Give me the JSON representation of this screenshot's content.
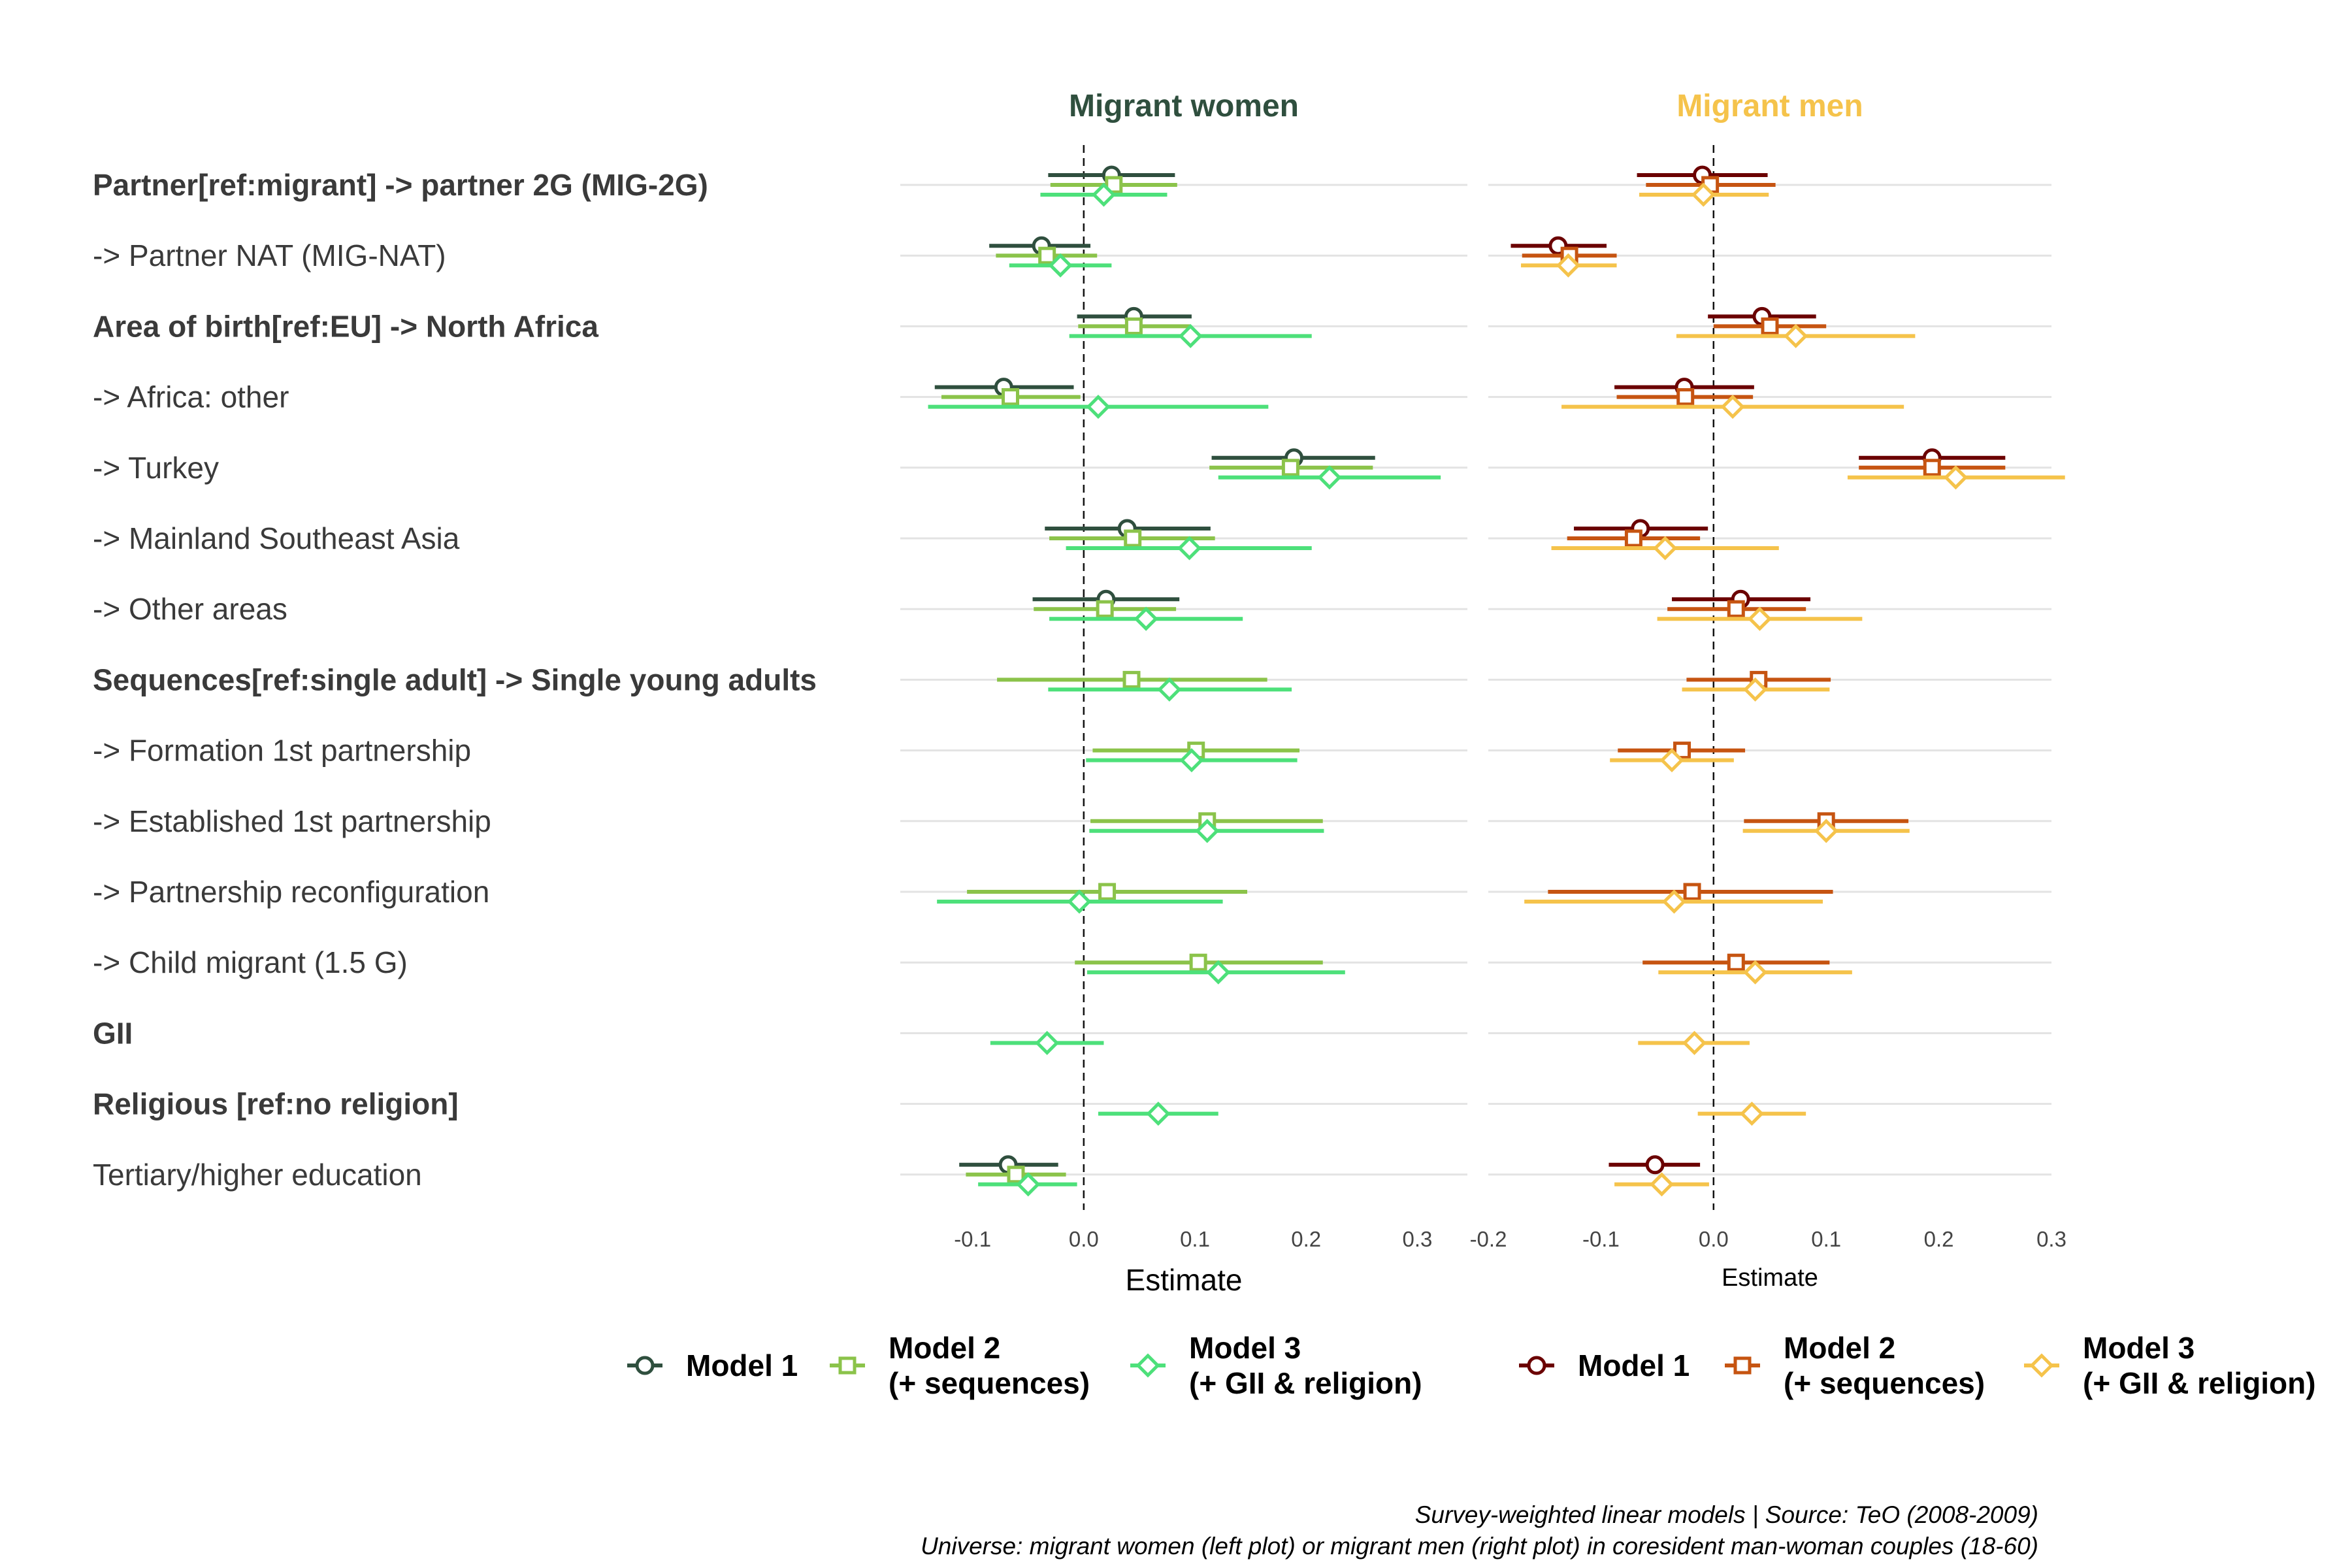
{
  "chart_data": {
    "type": "scatter",
    "subtype": "coefficient-plot",
    "terms": [
      {
        "label": "Partner[ref:migrant] -> partner 2G (MIG-2G)",
        "bold": true
      },
      {
        "label": "-> Partner NAT (MIG-NAT)",
        "bold": false
      },
      {
        "label": "Area of birth[ref:EU] -> North Africa",
        "bold": true
      },
      {
        "label": "-> Africa: other",
        "bold": false
      },
      {
        "label": "-> Turkey",
        "bold": false
      },
      {
        "label": "-> Mainland Southeast Asia",
        "bold": false
      },
      {
        "label": "-> Other areas",
        "bold": false
      },
      {
        "label": "Sequences[ref:single adult] -> Single young adults",
        "bold": true
      },
      {
        "label": "-> Formation 1st partnership",
        "bold": false
      },
      {
        "label": "-> Established 1st partnership",
        "bold": false
      },
      {
        "label": "-> Partnership reconfiguration",
        "bold": false
      },
      {
        "label": "-> Child migrant (1.5 G)",
        "bold": false
      },
      {
        "label": "GII",
        "bold": true
      },
      {
        "label": "Religious [ref:no religion]",
        "bold": true
      },
      {
        "label": "Tertiary/higher education",
        "bold": false
      }
    ],
    "panels": [
      {
        "title": "Migrant women",
        "title_color": "#2F4F3E",
        "xlabel": "Estimate",
        "xlim": [
          -0.165,
          0.345
        ],
        "ticks": [
          -0.1,
          0.0,
          0.1,
          0.2,
          0.3
        ],
        "tick_labels": [
          "-0.1",
          "0.0",
          "0.1",
          "0.2",
          "0.3"
        ],
        "reference_line": 0,
        "series": [
          {
            "name": "Model 1",
            "shape": "circle",
            "color": "#2F4F3E",
            "points": [
              {
                "term": 0,
                "est": 0.025,
                "lo": -0.032,
                "hi": 0.082
              },
              {
                "term": 1,
                "est": -0.038,
                "lo": -0.085,
                "hi": 0.006
              },
              {
                "term": 2,
                "est": 0.045,
                "lo": -0.006,
                "hi": 0.097
              },
              {
                "term": 3,
                "est": -0.072,
                "lo": -0.134,
                "hi": -0.009
              },
              {
                "term": 4,
                "est": 0.189,
                "lo": 0.115,
                "hi": 0.262
              },
              {
                "term": 5,
                "est": 0.039,
                "lo": -0.035,
                "hi": 0.114
              },
              {
                "term": 6,
                "est": 0.02,
                "lo": -0.046,
                "hi": 0.086
              },
              {
                "term": 14,
                "est": -0.068,
                "lo": -0.112,
                "hi": -0.023
              }
            ]
          },
          {
            "name": "Model 2\n(+ sequences)",
            "shape": "square",
            "color": "#8BC34A",
            "points": [
              {
                "term": 0,
                "est": 0.027,
                "lo": -0.03,
                "hi": 0.084
              },
              {
                "term": 1,
                "est": -0.033,
                "lo": -0.079,
                "hi": 0.012
              },
              {
                "term": 2,
                "est": 0.045,
                "lo": -0.005,
                "hi": 0.096
              },
              {
                "term": 3,
                "est": -0.066,
                "lo": -0.128,
                "hi": -0.003
              },
              {
                "term": 4,
                "est": 0.186,
                "lo": 0.113,
                "hi": 0.26
              },
              {
                "term": 5,
                "est": 0.044,
                "lo": -0.031,
                "hi": 0.118
              },
              {
                "term": 6,
                "est": 0.019,
                "lo": -0.045,
                "hi": 0.083
              },
              {
                "term": 7,
                "est": 0.043,
                "lo": -0.078,
                "hi": 0.165
              },
              {
                "term": 8,
                "est": 0.101,
                "lo": 0.008,
                "hi": 0.194
              },
              {
                "term": 9,
                "est": 0.111,
                "lo": 0.006,
                "hi": 0.215
              },
              {
                "term": 10,
                "est": 0.021,
                "lo": -0.105,
                "hi": 0.147
              },
              {
                "term": 11,
                "est": 0.103,
                "lo": -0.008,
                "hi": 0.215
              },
              {
                "term": 14,
                "est": -0.061,
                "lo": -0.106,
                "hi": -0.016
              }
            ]
          },
          {
            "name": "Model 3\n(+ GII & religion)",
            "shape": "diamond",
            "color": "#4DE07A",
            "points": [
              {
                "term": 0,
                "est": 0.018,
                "lo": -0.039,
                "hi": 0.075
              },
              {
                "term": 1,
                "est": -0.021,
                "lo": -0.067,
                "hi": 0.025
              },
              {
                "term": 2,
                "est": 0.096,
                "lo": -0.013,
                "hi": 0.205
              },
              {
                "term": 3,
                "est": 0.013,
                "lo": -0.14,
                "hi": 0.166
              },
              {
                "term": 4,
                "est": 0.221,
                "lo": 0.121,
                "hi": 0.321
              },
              {
                "term": 5,
                "est": 0.095,
                "lo": -0.016,
                "hi": 0.205
              },
              {
                "term": 6,
                "est": 0.056,
                "lo": -0.031,
                "hi": 0.143
              },
              {
                "term": 7,
                "est": 0.077,
                "lo": -0.032,
                "hi": 0.187
              },
              {
                "term": 8,
                "est": 0.097,
                "lo": 0.002,
                "hi": 0.192
              },
              {
                "term": 9,
                "est": 0.111,
                "lo": 0.005,
                "hi": 0.216
              },
              {
                "term": 10,
                "est": -0.004,
                "lo": -0.132,
                "hi": 0.125
              },
              {
                "term": 11,
                "est": 0.121,
                "lo": 0.003,
                "hi": 0.235
              },
              {
                "term": 12,
                "est": -0.033,
                "lo": -0.084,
                "hi": 0.018
              },
              {
                "term": 13,
                "est": 0.067,
                "lo": 0.013,
                "hi": 0.121
              },
              {
                "term": 14,
                "est": -0.05,
                "lo": -0.095,
                "hi": -0.006
              }
            ]
          }
        ]
      },
      {
        "title": "Migrant men",
        "title_color": "#F5C34B",
        "xlabel": "Estimate",
        "xlim": [
          -0.2,
          0.3
        ],
        "ticks": [
          -0.2,
          -0.1,
          0.0,
          0.1,
          0.2,
          0.3
        ],
        "tick_labels": [
          "-0.2",
          "-0.1",
          "0.0",
          "0.1",
          "0.2",
          "0.3"
        ],
        "reference_line": 0,
        "series": [
          {
            "name": "Model 1",
            "shape": "circle",
            "color": "#6B0000",
            "points": [
              {
                "term": 0,
                "est": -0.01,
                "lo": -0.068,
                "hi": 0.048
              },
              {
                "term": 1,
                "est": -0.138,
                "lo": -0.18,
                "hi": -0.095
              },
              {
                "term": 2,
                "est": 0.043,
                "lo": -0.005,
                "hi": 0.091
              },
              {
                "term": 3,
                "est": -0.026,
                "lo": -0.088,
                "hi": 0.036
              },
              {
                "term": 4,
                "est": 0.194,
                "lo": 0.129,
                "hi": 0.259
              },
              {
                "term": 5,
                "est": -0.065,
                "lo": -0.124,
                "hi": -0.005
              },
              {
                "term": 6,
                "est": 0.024,
                "lo": -0.037,
                "hi": 0.086
              },
              {
                "term": 14,
                "est": -0.052,
                "lo": -0.093,
                "hi": -0.012
              }
            ]
          },
          {
            "name": "Model 2\n(+ sequences)",
            "shape": "square",
            "color": "#C65411",
            "points": [
              {
                "term": 0,
                "est": -0.003,
                "lo": -0.06,
                "hi": 0.055
              },
              {
                "term": 1,
                "est": -0.128,
                "lo": -0.17,
                "hi": -0.086
              },
              {
                "term": 2,
                "est": 0.05,
                "lo": 0.0,
                "hi": 0.1
              },
              {
                "term": 3,
                "est": -0.025,
                "lo": -0.086,
                "hi": 0.035
              },
              {
                "term": 4,
                "est": 0.194,
                "lo": 0.129,
                "hi": 0.259
              },
              {
                "term": 5,
                "est": -0.071,
                "lo": -0.13,
                "hi": -0.012
              },
              {
                "term": 6,
                "est": 0.02,
                "lo": -0.041,
                "hi": 0.082
              },
              {
                "term": 7,
                "est": 0.04,
                "lo": -0.024,
                "hi": 0.104
              },
              {
                "term": 8,
                "est": -0.028,
                "lo": -0.085,
                "hi": 0.028
              },
              {
                "term": 9,
                "est": 0.1,
                "lo": 0.027,
                "hi": 0.173
              },
              {
                "term": 10,
                "est": -0.019,
                "lo": -0.147,
                "hi": 0.106
              },
              {
                "term": 11,
                "est": 0.02,
                "lo": -0.063,
                "hi": 0.103
              }
            ]
          },
          {
            "name": "Model 3\n(+ GII & religion)",
            "shape": "diamond",
            "color": "#F5C34B",
            "points": [
              {
                "term": 0,
                "est": -0.009,
                "lo": -0.066,
                "hi": 0.049
              },
              {
                "term": 1,
                "est": -0.129,
                "lo": -0.171,
                "hi": -0.086
              },
              {
                "term": 2,
                "est": 0.073,
                "lo": -0.033,
                "hi": 0.179
              },
              {
                "term": 3,
                "est": 0.017,
                "lo": -0.135,
                "hi": 0.169
              },
              {
                "term": 4,
                "est": 0.215,
                "lo": 0.119,
                "hi": 0.312
              },
              {
                "term": 5,
                "est": -0.043,
                "lo": -0.144,
                "hi": 0.058
              },
              {
                "term": 6,
                "est": 0.041,
                "lo": -0.05,
                "hi": 0.132
              },
              {
                "term": 7,
                "est": 0.037,
                "lo": -0.028,
                "hi": 0.103
              },
              {
                "term": 8,
                "est": -0.037,
                "lo": -0.092,
                "hi": 0.018
              },
              {
                "term": 9,
                "est": 0.1,
                "lo": 0.026,
                "hi": 0.174
              },
              {
                "term": 10,
                "est": -0.035,
                "lo": -0.168,
                "hi": 0.097
              },
              {
                "term": 11,
                "est": 0.037,
                "lo": -0.049,
                "hi": 0.123
              },
              {
                "term": 12,
                "est": -0.017,
                "lo": -0.067,
                "hi": 0.032
              },
              {
                "term": 13,
                "est": 0.034,
                "lo": -0.014,
                "hi": 0.082
              },
              {
                "term": 14,
                "est": -0.046,
                "lo": -0.088,
                "hi": -0.004
              }
            ]
          }
        ]
      }
    ],
    "legend_placement": "bottom",
    "grid": "horizontal",
    "caption": [
      "Survey-weighted linear models | Source: TeO (2008-2009)",
      "Universe: migrant women (left plot) or migrant men (right plot) in coresident man-woman couples (18-60)"
    ]
  }
}
